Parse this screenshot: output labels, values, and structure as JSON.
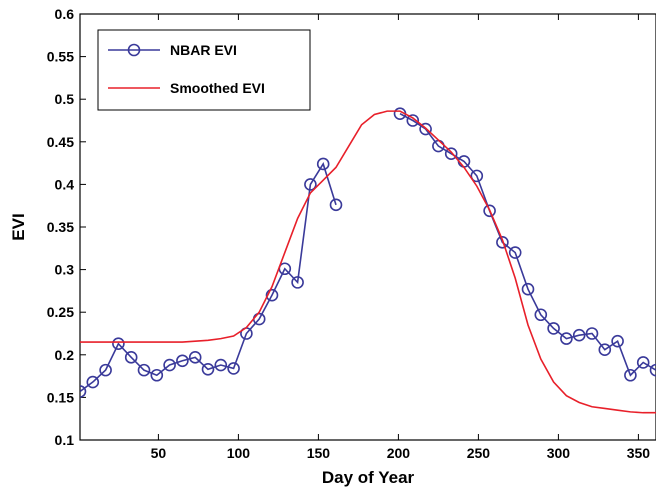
{
  "chart_data": {
    "type": "line",
    "xlabel": "Day of Year",
    "ylabel": "EVI",
    "x": [
      1,
      9,
      17,
      25,
      33,
      41,
      49,
      57,
      65,
      73,
      81,
      89,
      97,
      105,
      113,
      121,
      129,
      137,
      145,
      153,
      161,
      169,
      177,
      185,
      193,
      201,
      209,
      217,
      225,
      233,
      241,
      249,
      257,
      265,
      273,
      281,
      289,
      297,
      305,
      313,
      321,
      329,
      337,
      345,
      353,
      361
    ],
    "series": [
      {
        "name": "NBAR EVI",
        "color": "#3a3a9a",
        "marker": "circle",
        "values": [
          0.157,
          0.168,
          0.182,
          0.213,
          0.197,
          0.182,
          0.176,
          0.188,
          0.193,
          0.197,
          0.183,
          0.188,
          0.184,
          0.225,
          0.242,
          0.27,
          0.301,
          0.285,
          0.4,
          0.424,
          0.376,
          null,
          null,
          null,
          null,
          0.483,
          0.475,
          0.465,
          0.445,
          0.436,
          0.427,
          0.41,
          0.369,
          0.332,
          0.32,
          0.277,
          0.247,
          0.231,
          0.219,
          0.223,
          0.225,
          0.206,
          0.216,
          0.176,
          0.191,
          0.182
        ]
      },
      {
        "name": "Smoothed EVI",
        "color": "#e8202a",
        "marker": "none",
        "values": [
          0.215,
          0.215,
          0.215,
          0.215,
          0.215,
          0.215,
          0.215,
          0.215,
          0.215,
          0.216,
          0.217,
          0.219,
          0.222,
          0.232,
          0.25,
          0.28,
          0.32,
          0.36,
          0.39,
          0.405,
          0.42,
          0.445,
          0.47,
          0.482,
          0.486,
          0.486,
          0.478,
          0.466,
          0.452,
          0.438,
          0.42,
          0.398,
          0.37,
          0.335,
          0.29,
          0.235,
          0.195,
          0.168,
          0.152,
          0.144,
          0.139,
          0.137,
          0.135,
          0.133,
          0.132,
          0.132
        ]
      }
    ],
    "xlim": [
      1,
      361
    ],
    "xticks": [
      50,
      100,
      150,
      200,
      250,
      300,
      350
    ],
    "ylim": [
      0.1,
      0.6
    ],
    "yticks": [
      0.1,
      0.15,
      0.2,
      0.25,
      0.3,
      0.35,
      0.4,
      0.45,
      0.5,
      0.55,
      0.6
    ],
    "grid": false,
    "legend": "upper left"
  }
}
